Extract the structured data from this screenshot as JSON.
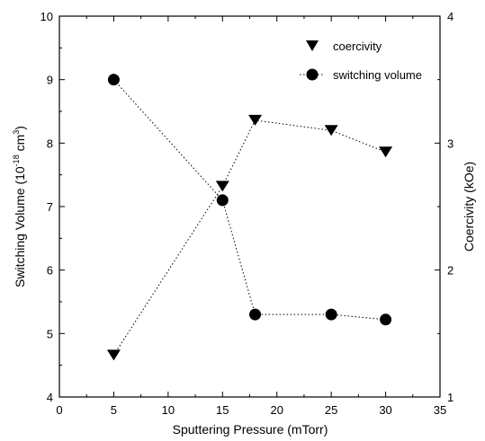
{
  "chart_data": {
    "type": "scatter",
    "xlabel": "Sputtering Pressure (mTorr)",
    "ylabel_left": {
      "prefix": "Switching Volume (10",
      "sup": "-18",
      "mid": " cm",
      "sup2": "3",
      "suffix": ")"
    },
    "ylabel_right": "Coercivity (kOe)",
    "xlim": [
      0,
      35
    ],
    "ylim_left": [
      4,
      10
    ],
    "ylim_right": [
      1,
      4
    ],
    "x_ticks": [
      "0",
      "5",
      "10",
      "15",
      "20",
      "25",
      "30",
      "35"
    ],
    "y_left_ticks": [
      "4",
      "5",
      "6",
      "7",
      "8",
      "9",
      "10"
    ],
    "y_right_ticks": [
      "1",
      "2",
      "3",
      "4"
    ],
    "grid": false,
    "legend_position": "top-right",
    "series": [
      {
        "name": "coercivity",
        "axis": "right",
        "marker": "triangle-down",
        "line": "dotted",
        "x": [
          5,
          15,
          18,
          25,
          30
        ],
        "y": [
          1.33,
          2.66,
          3.18,
          3.1,
          2.93
        ]
      },
      {
        "name": "switching volume",
        "axis": "left",
        "marker": "circle",
        "line": "dotted",
        "x": [
          5,
          15,
          18,
          25,
          30
        ],
        "y": [
          9.0,
          7.1,
          5.3,
          5.3,
          5.22
        ]
      }
    ]
  }
}
